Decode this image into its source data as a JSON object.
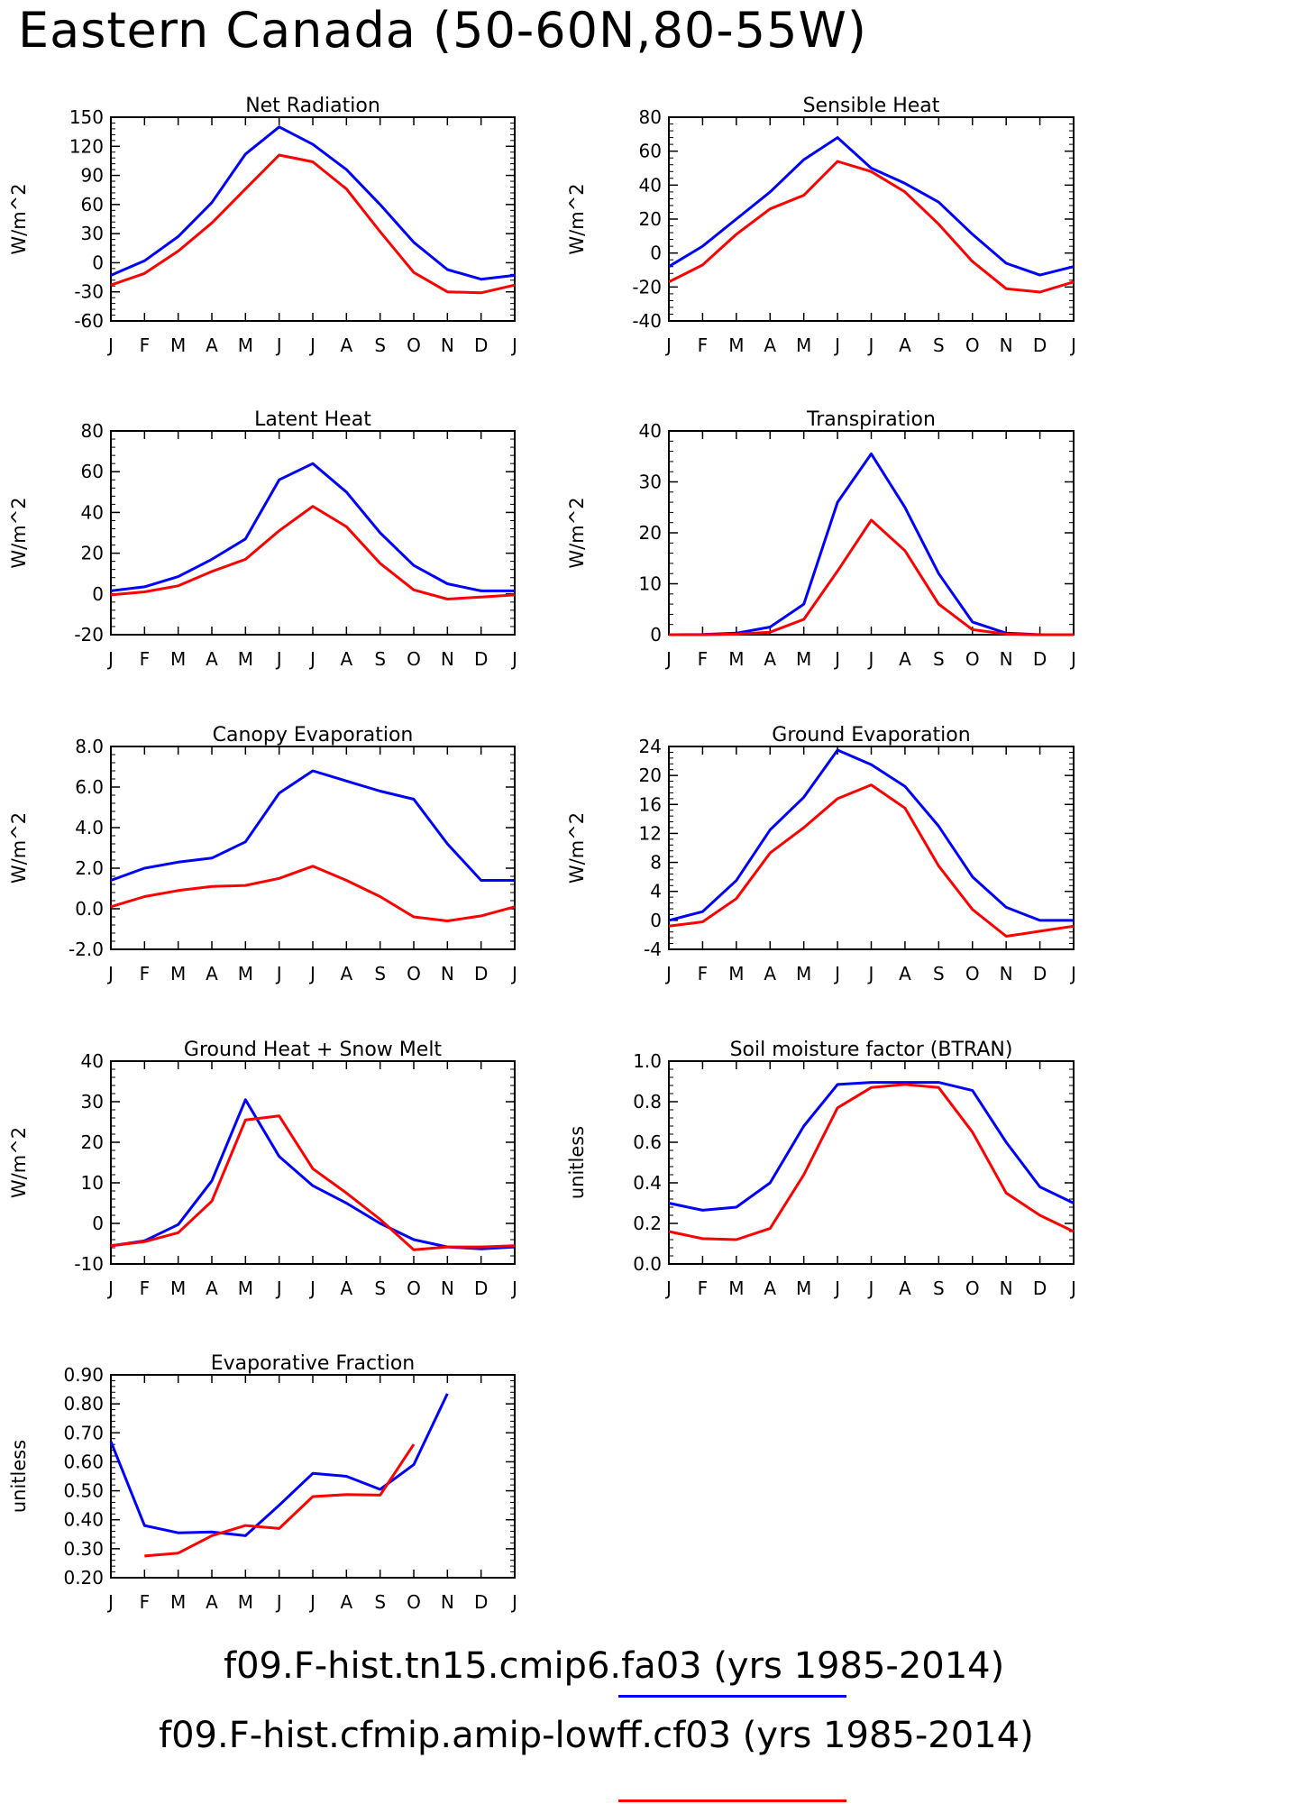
{
  "title": "Eastern Canada (50-60N,80-55W)",
  "months": [
    "J",
    "F",
    "M",
    "A",
    "M",
    "J",
    "J",
    "A",
    "S",
    "O",
    "N",
    "D",
    "J"
  ],
  "colors": {
    "case1": "#0000ff",
    "case2": "#ff0000"
  },
  "legend": [
    {
      "label": "f09.F-hist.tn15.cmip6.fa03 (yrs 1985-2014)",
      "color": "#0000ff"
    },
    {
      "label": "f09.F-hist.cfmip.amip-lowff.cf03 (yrs 1985-2014)",
      "color": "#ff0000"
    }
  ],
  "chart_data": [
    {
      "type": "line",
      "title": "Net Radiation",
      "ylabel": "W/m^2",
      "ylim": [
        -60,
        150
      ],
      "yticks": [
        -60,
        -30,
        0,
        30,
        60,
        90,
        120,
        150
      ],
      "ytick_labels": [
        "-60",
        "-30",
        "0",
        "30",
        "60",
        "90",
        "120",
        "150"
      ],
      "series": [
        {
          "values": [
            -13,
            2,
            27,
            62,
            112,
            140,
            122,
            96,
            60,
            21,
            -7,
            -17,
            -13
          ]
        },
        {
          "values": [
            -23,
            -11,
            12,
            41,
            76,
            111,
            104,
            76,
            32,
            -10,
            -30,
            -31,
            -23
          ]
        }
      ]
    },
    {
      "type": "line",
      "title": "Sensible Heat",
      "ylabel": "W/m^2",
      "ylim": [
        -40,
        80
      ],
      "yticks": [
        -40,
        -20,
        0,
        20,
        40,
        60,
        80
      ],
      "ytick_labels": [
        "-40",
        "-20",
        "0",
        "20",
        "40",
        "60",
        "80"
      ],
      "series": [
        {
          "values": [
            -8,
            4,
            20,
            36,
            55,
            68,
            50,
            41,
            30,
            11,
            -6,
            -13,
            -8
          ]
        },
        {
          "values": [
            -17,
            -7,
            11,
            26,
            34,
            54,
            48,
            36,
            17,
            -5,
            -21,
            -23,
            -17
          ]
        }
      ]
    },
    {
      "type": "line",
      "title": "Latent Heat",
      "ylabel": "W/m^2",
      "ylim": [
        -20,
        80
      ],
      "yticks": [
        -20,
        0,
        20,
        40,
        60,
        80
      ],
      "ytick_labels": [
        "-20",
        "0",
        "20",
        "40",
        "60",
        "80"
      ],
      "series": [
        {
          "values": [
            1.5,
            3.5,
            8.5,
            17,
            27,
            56,
            64,
            50,
            30,
            14,
            5,
            1.5,
            1.5
          ]
        },
        {
          "values": [
            -0.5,
            1,
            4,
            11,
            17,
            31,
            43,
            33,
            15,
            2,
            -2.5,
            -1.5,
            -0.5
          ]
        }
      ]
    },
    {
      "type": "line",
      "title": "Transpiration",
      "ylabel": "W/m^2",
      "ylim": [
        0,
        40
      ],
      "yticks": [
        0,
        10,
        20,
        30,
        40
      ],
      "ytick_labels": [
        "0",
        "10",
        "20",
        "30",
        "40"
      ],
      "series": [
        {
          "values": [
            0,
            0.05,
            0.3,
            1.5,
            6,
            26,
            35.5,
            25,
            12,
            2.5,
            0.3,
            0,
            0
          ]
        },
        {
          "values": [
            0,
            0,
            0.1,
            0.5,
            3,
            12.5,
            22.5,
            16.5,
            6,
            1,
            0.1,
            0,
            0
          ]
        }
      ]
    },
    {
      "type": "line",
      "title": "Canopy Evaporation",
      "ylabel": "W/m^2",
      "ylim": [
        -2,
        8
      ],
      "yticks": [
        -2,
        0,
        2,
        4,
        6,
        8
      ],
      "ytick_labels": [
        "-2.0",
        "0.0",
        "2.0",
        "4.0",
        "6.0",
        "8.0"
      ],
      "series": [
        {
          "values": [
            1.4,
            2.0,
            2.3,
            2.5,
            3.3,
            5.7,
            6.8,
            6.3,
            5.8,
            5.4,
            3.2,
            1.4,
            1.4
          ]
        },
        {
          "values": [
            0.1,
            0.6,
            0.9,
            1.1,
            1.15,
            1.5,
            2.1,
            1.4,
            0.6,
            -0.4,
            -0.6,
            -0.35,
            0.1
          ]
        }
      ]
    },
    {
      "type": "line",
      "title": "Ground Evaporation",
      "ylabel": "W/m^2",
      "ylim": [
        -4,
        24
      ],
      "yticks": [
        -4,
        0,
        4,
        8,
        12,
        16,
        20,
        24
      ],
      "ytick_labels": [
        "-4",
        "0",
        "4",
        "8",
        "12",
        "16",
        "20",
        "24"
      ],
      "series": [
        {
          "values": [
            0,
            1.2,
            5.5,
            12.5,
            17,
            23.5,
            21.5,
            18.5,
            13,
            6,
            1.8,
            0,
            0
          ]
        },
        {
          "values": [
            -0.8,
            -0.2,
            3,
            9.3,
            12.8,
            16.8,
            18.7,
            15.5,
            7.5,
            1.5,
            -2.2,
            -1.5,
            -0.8
          ]
        }
      ]
    },
    {
      "type": "line",
      "title": "Ground Heat + Snow Melt",
      "ylabel": "W/m^2",
      "ylim": [
        -10,
        40
      ],
      "yticks": [
        -10,
        0,
        10,
        20,
        30,
        40
      ],
      "ytick_labels": [
        "-10",
        "0",
        "10",
        "20",
        "30",
        "40"
      ],
      "series": [
        {
          "values": [
            -5.5,
            -4.3,
            -0.3,
            10.5,
            30.5,
            16.5,
            9.3,
            5,
            0,
            -4,
            -5.8,
            -6.3,
            -5.8
          ]
        },
        {
          "values": [
            -5.5,
            -4.5,
            -2.3,
            5.5,
            25.5,
            26.5,
            13.5,
            7.5,
            1,
            -6.5,
            -5.8,
            -5.8,
            -5.5
          ]
        }
      ]
    },
    {
      "type": "line",
      "title": "Soil moisture factor (BTRAN)",
      "ylabel": "unitless",
      "ylim": [
        0,
        1
      ],
      "yticks": [
        0,
        0.2,
        0.4,
        0.6,
        0.8,
        1.0
      ],
      "ytick_labels": [
        "0.0",
        "0.2",
        "0.4",
        "0.6",
        "0.8",
        "1.0"
      ],
      "series": [
        {
          "values": [
            0.3,
            0.265,
            0.28,
            0.4,
            0.68,
            0.885,
            0.895,
            0.895,
            0.895,
            0.855,
            0.6,
            0.38,
            0.3
          ]
        },
        {
          "values": [
            0.16,
            0.125,
            0.12,
            0.175,
            0.44,
            0.77,
            0.87,
            0.885,
            0.87,
            0.65,
            0.35,
            0.24,
            0.16
          ]
        }
      ]
    },
    {
      "type": "line",
      "title": "Evaporative Fraction",
      "ylabel": "unitless",
      "ylim": [
        0.2,
        0.9
      ],
      "yticks": [
        0.2,
        0.3,
        0.4,
        0.5,
        0.6,
        0.7,
        0.8,
        0.9
      ],
      "ytick_labels": [
        "0.20",
        "0.30",
        "0.40",
        "0.50",
        "0.60",
        "0.70",
        "0.80",
        "0.90"
      ],
      "series": [
        {
          "values": [
            0.67,
            0.38,
            0.355,
            0.358,
            0.345,
            0.45,
            0.56,
            0.55,
            0.505,
            0.59,
            0.835,
            null,
            null
          ]
        },
        {
          "values": [
            null,
            0.275,
            0.285,
            0.345,
            0.38,
            0.37,
            0.48,
            0.487,
            0.485,
            0.66,
            null,
            null,
            null
          ]
        }
      ]
    }
  ]
}
